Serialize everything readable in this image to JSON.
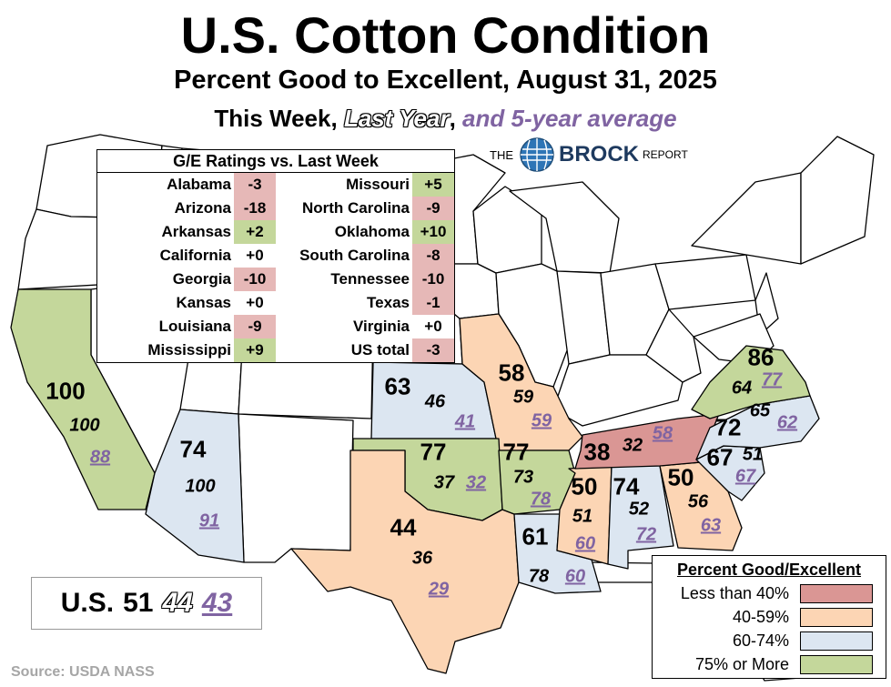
{
  "title": "U.S. Cotton Condition",
  "subtitle": "Percent Good to Excellent, August 31, 2025",
  "subtitle2": {
    "part1": "This Week, ",
    "part2": "Last Year",
    "part3": ", ",
    "part4": "and 5-year average"
  },
  "brand": {
    "pre": "THE",
    "name": "BROCK",
    "post": "REPORT",
    "globe_icon": "globe-icon"
  },
  "table": {
    "header": "G/E Ratings vs. Last Week",
    "left": [
      {
        "state": "Alabama",
        "change": "-3"
      },
      {
        "state": "Arizona",
        "change": "-18"
      },
      {
        "state": "Arkansas",
        "change": "+2"
      },
      {
        "state": "California",
        "change": "+0"
      },
      {
        "state": "Georgia",
        "change": "-10"
      },
      {
        "state": "Kansas",
        "change": "+0"
      },
      {
        "state": "Louisiana",
        "change": "-9"
      },
      {
        "state": "Mississippi",
        "change": "+9"
      }
    ],
    "right": [
      {
        "state": "Missouri",
        "change": "+5"
      },
      {
        "state": "North Carolina",
        "change": "-9"
      },
      {
        "state": "Oklahoma",
        "change": "+10"
      },
      {
        "state": "South Carolina",
        "change": "-8"
      },
      {
        "state": "Tennessee",
        "change": "-10"
      },
      {
        "state": "Texas",
        "change": "-1"
      },
      {
        "state": "Virginia",
        "change": "+0"
      },
      {
        "state": "US total",
        "change": "-3"
      }
    ]
  },
  "states": [
    {
      "id": "california",
      "this_week": "100",
      "last_year": "100",
      "avg5": "88",
      "category": "75+"
    },
    {
      "id": "arizona",
      "this_week": "74",
      "last_year": "100",
      "avg5": "91",
      "category": "60-74"
    },
    {
      "id": "kansas",
      "this_week": "63",
      "last_year": "46",
      "avg5": "41",
      "category": "60-74"
    },
    {
      "id": "missouri",
      "this_week": "58",
      "last_year": "59",
      "avg5": "59",
      "category": "40-59"
    },
    {
      "id": "oklahoma",
      "this_week": "77",
      "last_year": "37",
      "avg5": "32",
      "category": "75+"
    },
    {
      "id": "arkansas",
      "this_week": "77",
      "last_year": "73",
      "avg5": "78",
      "category": "75+"
    },
    {
      "id": "texas",
      "this_week": "44",
      "last_year": "36",
      "avg5": "29",
      "category": "40-59"
    },
    {
      "id": "louisiana",
      "this_week": "61",
      "last_year": "78",
      "avg5": "60",
      "category": "60-74"
    },
    {
      "id": "mississippi",
      "this_week": "50",
      "last_year": "51",
      "avg5": "60",
      "category": "40-59"
    },
    {
      "id": "alabama",
      "this_week": "74",
      "last_year": "52",
      "avg5": "72",
      "category": "60-74"
    },
    {
      "id": "georgia",
      "this_week": "50",
      "last_year": "56",
      "avg5": "63",
      "category": "40-59"
    },
    {
      "id": "tennessee",
      "this_week": "38",
      "last_year": "32",
      "avg5": "58",
      "category": "<40"
    },
    {
      "id": "south-carolina",
      "this_week": "67",
      "last_year": "51",
      "avg5": "67",
      "category": "60-74"
    },
    {
      "id": "north-carolina",
      "this_week": "72",
      "last_year": "65",
      "avg5": "62",
      "category": "60-74"
    },
    {
      "id": "virginia",
      "this_week": "86",
      "last_year": "64",
      "avg5": "77",
      "category": "75+"
    }
  ],
  "us": {
    "label": "U.S.",
    "this_week": "51",
    "last_year": "44",
    "avg5": "43"
  },
  "legend": {
    "title": "Percent Good/Excellent",
    "items": [
      {
        "label": "Less than 40%",
        "color": "#da9694"
      },
      {
        "label": "40-59%",
        "color": "#fcd5b4"
      },
      {
        "label": "60-74%",
        "color": "#dce6f1"
      },
      {
        "label": "75% or More",
        "color": "#c4d79b"
      }
    ]
  },
  "colors": {
    "lt40": "#da9694",
    "c40_59": "#fcd5b4",
    "c60_74": "#dce6f1",
    "c75": "#c4d79b",
    "avg_text": "#8064a2"
  },
  "source": "Source: USDA NASS"
}
